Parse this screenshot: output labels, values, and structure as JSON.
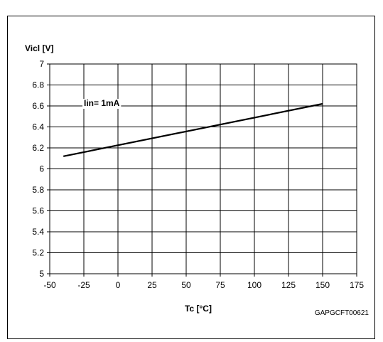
{
  "chart_data": {
    "type": "line",
    "title": "",
    "ylabel": "Vicl [V]",
    "xlabel": "Tc [°C]",
    "code": "GAPGCFT00621",
    "xlim": [
      -50,
      175
    ],
    "ylim": [
      5,
      7
    ],
    "x_ticks": [
      "-50",
      "-25",
      "0",
      "25",
      "50",
      "75",
      "100",
      "125",
      "150",
      "175"
    ],
    "y_ticks": [
      "5",
      "5.2",
      "5.4",
      "5.6",
      "5.8",
      "6",
      "6.2",
      "6.4",
      "6.6",
      "6.8",
      "7"
    ],
    "grid": true,
    "annotations": [
      {
        "text": "Iin= 1mA",
        "x": -25,
        "y": 6.6
      }
    ],
    "series": [
      {
        "name": "",
        "x": [
          -40,
          150
        ],
        "y": [
          6.12,
          6.62
        ]
      }
    ],
    "colors": {
      "line": "#000000",
      "grid": "#000000"
    }
  }
}
